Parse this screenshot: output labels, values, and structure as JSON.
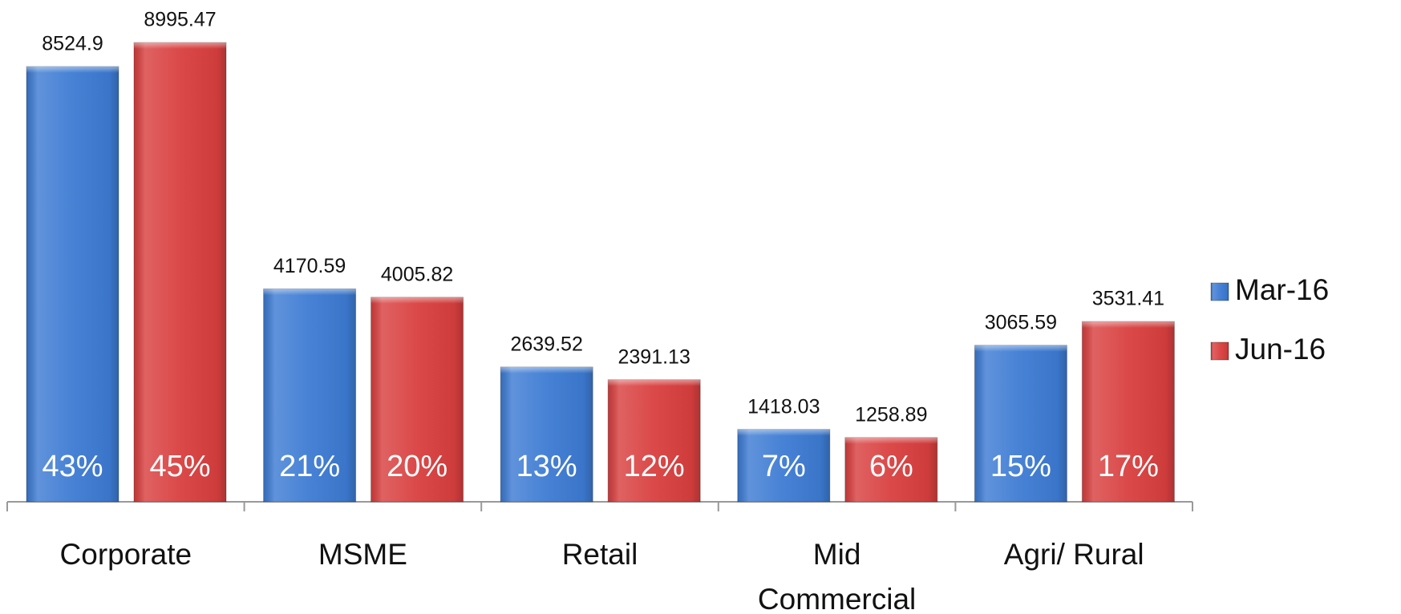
{
  "chart_data": {
    "type": "bar",
    "categories": [
      "Corporate",
      "MSME",
      "Retail",
      "Mid Commercial",
      "Agri/ Rural"
    ],
    "series": [
      {
        "name": "Mar-16",
        "color": "#3d7bd3",
        "values": [
          8524.9,
          4170.59,
          2639.52,
          1418.03,
          3065.59
        ],
        "share_labels": [
          "43%",
          "21%",
          "13%",
          "7%",
          "15%"
        ]
      },
      {
        "name": "Jun-16",
        "color": "#d93f3f",
        "values": [
          8995.47,
          4005.82,
          2391.13,
          1258.89,
          3531.41
        ],
        "share_labels": [
          "45%",
          "20%",
          "12%",
          "6%",
          "17%"
        ]
      }
    ],
    "legend": "right"
  }
}
